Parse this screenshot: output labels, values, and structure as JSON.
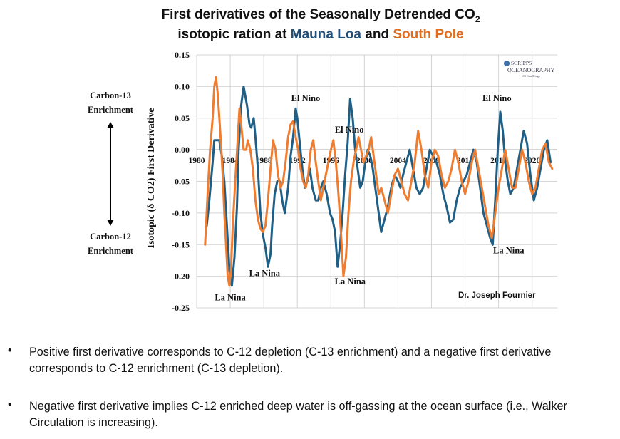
{
  "title_line1": "First derivatives of the Seasonally Detrended CO",
  "title_line1_sub": "2",
  "title_line2_prefix": "isotopic ration at ",
  "title_mlo": "Mauna Loa",
  "title_and": " and ",
  "title_spo": "South Pole",
  "side": {
    "top_label_1": "Carbon-13",
    "top_label_2": "Enrichment",
    "bottom_label_1": "Carbon-12",
    "bottom_label_2": "Enrichment"
  },
  "logo": {
    "line1": "SCRIPPS",
    "line2": "OCEANOGRAPHY",
    "line3": "UC San Diego"
  },
  "credit": "Dr. Joseph Fournier",
  "bullets": [
    "Positive first derivative corresponds to C-12 depletion (C-13 enrichment) and a negative first derivative corresponds to C-12 enrichment (C-13 depletion).",
    "Negative first derivative implies C-12 enriched deep water is off-gassing at the ocean surface (i.e., Walker Circulation is increasing)."
  ],
  "bullet_marker": "•",
  "colors": {
    "mlo": "#1f5f85",
    "spo": "#ee7d31",
    "grid": "#d4d4d4"
  },
  "chart_data": {
    "type": "line",
    "title": "First derivatives of the Seasonally Detrended CO2 isotopic ration at Mauna Loa and South Pole",
    "ylabel": "Isotopic (δ CO2) First Derivative",
    "xlabel": "",
    "xlim": [
      1980,
      2023
    ],
    "ylim": [
      -0.25,
      0.15
    ],
    "xticks": [
      1980,
      1984,
      1988,
      1992,
      1996,
      2000,
      2004,
      2008,
      2012,
      2016,
      2020
    ],
    "yticks": [
      0.15,
      0.1,
      0.05,
      0.0,
      -0.05,
      -0.1,
      -0.15,
      -0.2,
      -0.25
    ],
    "ytick_labels": [
      "0.15",
      "0.10",
      "0.05",
      "0.00",
      "-0.05",
      "-0.10",
      "-0.15",
      "-0.20",
      "-0.25"
    ],
    "grid": true,
    "series": [
      {
        "name": "Mauna Loa",
        "color": "#1f5f85",
        "x": [
          1981.2,
          1981.5,
          1981.9,
          1982.1,
          1982.4,
          1982.7,
          1983.0,
          1983.3,
          1983.6,
          1983.9,
          1984.2,
          1984.5,
          1984.8,
          1985.0,
          1985.3,
          1985.6,
          1986.0,
          1986.3,
          1986.5,
          1986.8,
          1987.0,
          1987.3,
          1987.6,
          1987.9,
          1988.2,
          1988.5,
          1988.8,
          1989.0,
          1989.3,
          1989.6,
          1989.9,
          1990.2,
          1990.5,
          1990.9,
          1991.2,
          1991.5,
          1991.8,
          1992.0,
          1992.3,
          1992.6,
          1992.9,
          1993.2,
          1993.5,
          1993.8,
          1994.2,
          1994.5,
          1994.8,
          1995.1,
          1995.5,
          1995.9,
          1996.2,
          1996.5,
          1996.8,
          1997.1,
          1997.4,
          1997.7,
          1998.0,
          1998.3,
          1998.6,
          1998.9,
          1999.2,
          1999.5,
          1999.8,
          2000.1,
          2000.4,
          2000.7,
          2001.0,
          2001.3,
          2001.6,
          2002.0,
          2002.4,
          2002.8,
          2003.2,
          2003.6,
          2004.0,
          2004.3,
          2004.6,
          2005.0,
          2005.4,
          2005.8,
          2006.2,
          2006.6,
          2007.0,
          2007.4,
          2007.8,
          2008.2,
          2008.6,
          2009.0,
          2009.4,
          2009.8,
          2010.2,
          2010.6,
          2011.0,
          2011.4,
          2011.8,
          2012.2,
          2012.6,
          2013.0,
          2013.4,
          2013.8,
          2014.2,
          2014.6,
          2015.0,
          2015.3,
          2015.6,
          2015.9,
          2016.2,
          2016.5,
          2016.8,
          2017.1,
          2017.4,
          2017.8,
          2018.2,
          2018.6,
          2019.0,
          2019.4,
          2019.8,
          2020.2,
          2020.6,
          2021.0,
          2021.4,
          2021.8,
          2022.2
        ],
        "values": [
          -0.12,
          -0.08,
          -0.02,
          0.015,
          0.015,
          0.015,
          -0.01,
          -0.05,
          -0.12,
          -0.19,
          -0.215,
          -0.17,
          -0.09,
          0.0,
          0.07,
          0.1,
          0.07,
          0.04,
          0.035,
          0.05,
          0.02,
          -0.03,
          -0.1,
          -0.135,
          -0.155,
          -0.185,
          -0.165,
          -0.12,
          -0.07,
          -0.05,
          -0.05,
          -0.08,
          -0.1,
          -0.06,
          -0.01,
          0.02,
          0.065,
          0.05,
          0.01,
          -0.03,
          -0.06,
          -0.05,
          -0.03,
          -0.06,
          -0.08,
          -0.08,
          -0.06,
          -0.05,
          -0.07,
          -0.1,
          -0.11,
          -0.13,
          -0.185,
          -0.15,
          -0.1,
          -0.04,
          0.01,
          0.08,
          0.05,
          0.0,
          -0.03,
          -0.06,
          -0.05,
          -0.02,
          0.0,
          -0.01,
          -0.03,
          -0.06,
          -0.09,
          -0.13,
          -0.11,
          -0.09,
          -0.06,
          -0.04,
          -0.05,
          -0.06,
          -0.04,
          -0.02,
          0.0,
          -0.03,
          -0.06,
          -0.07,
          -0.06,
          -0.03,
          0.0,
          -0.01,
          -0.02,
          -0.04,
          -0.07,
          -0.09,
          -0.115,
          -0.11,
          -0.08,
          -0.06,
          -0.05,
          -0.04,
          -0.02,
          0.0,
          -0.02,
          -0.06,
          -0.1,
          -0.12,
          -0.14,
          -0.15,
          -0.08,
          0.0,
          0.06,
          0.03,
          -0.02,
          -0.05,
          -0.07,
          -0.06,
          -0.03,
          0.0,
          0.03,
          0.01,
          -0.04,
          -0.08,
          -0.06,
          -0.03,
          0.0,
          0.015,
          -0.02
        ]
      },
      {
        "name": "South Pole",
        "color": "#ee7d31",
        "x": [
          1981.0,
          1981.3,
          1981.6,
          1981.9,
          1982.1,
          1982.3,
          1982.5,
          1982.7,
          1982.9,
          1983.1,
          1983.3,
          1983.5,
          1983.7,
          1983.9,
          1984.1,
          1984.3,
          1984.6,
          1984.9,
          1985.1,
          1985.3,
          1985.6,
          1985.9,
          1986.1,
          1986.4,
          1986.7,
          1987.0,
          1987.3,
          1987.6,
          1987.9,
          1988.2,
          1988.5,
          1988.8,
          1989.1,
          1989.4,
          1989.7,
          1990.0,
          1990.3,
          1990.6,
          1990.9,
          1991.2,
          1991.5,
          1991.8,
          1992.1,
          1992.4,
          1992.7,
          1993.0,
          1993.3,
          1993.6,
          1993.9,
          1994.2,
          1994.5,
          1994.8,
          1995.1,
          1995.4,
          1995.7,
          1996.0,
          1996.3,
          1996.6,
          1996.9,
          1997.2,
          1997.5,
          1997.8,
          1998.1,
          1998.4,
          1998.7,
          1999.0,
          1999.3,
          1999.6,
          1999.9,
          2000.2,
          2000.5,
          2000.8,
          2001.1,
          2001.4,
          2001.7,
          2002.0,
          2002.4,
          2002.8,
          2003.2,
          2003.6,
          2004.0,
          2004.4,
          2004.8,
          2005.2,
          2005.6,
          2006.0,
          2006.4,
          2006.8,
          2007.2,
          2007.6,
          2008.0,
          2008.4,
          2008.8,
          2009.2,
          2009.6,
          2010.0,
          2010.4,
          2010.8,
          2011.2,
          2011.6,
          2012.0,
          2012.4,
          2012.8,
          2013.2,
          2013.6,
          2014.0,
          2014.4,
          2014.8,
          2015.2,
          2015.6,
          2016.0,
          2016.4,
          2016.8,
          2017.2,
          2017.6,
          2018.0,
          2018.4,
          2018.8,
          2019.2,
          2019.6,
          2020.0,
          2020.4,
          2020.8,
          2021.2,
          2021.6,
          2022.0,
          2022.4
        ],
        "values": [
          -0.15,
          -0.07,
          0.0,
          0.05,
          0.1,
          0.115,
          0.09,
          0.05,
          0.01,
          -0.04,
          -0.1,
          -0.15,
          -0.2,
          -0.215,
          -0.19,
          -0.12,
          -0.05,
          0.02,
          0.065,
          0.04,
          0.0,
          0.0,
          0.015,
          0.0,
          -0.03,
          -0.08,
          -0.11,
          -0.125,
          -0.13,
          -0.12,
          -0.08,
          -0.03,
          0.015,
          0.0,
          -0.04,
          -0.06,
          -0.05,
          -0.02,
          0.02,
          0.04,
          0.045,
          0.02,
          0.0,
          -0.03,
          -0.05,
          -0.06,
          -0.04,
          0.0,
          0.015,
          -0.02,
          -0.05,
          -0.08,
          -0.06,
          -0.04,
          -0.02,
          0.0,
          0.015,
          -0.02,
          -0.07,
          -0.13,
          -0.2,
          -0.17,
          -0.1,
          -0.05,
          -0.02,
          0.0,
          0.02,
          0.0,
          -0.02,
          -0.01,
          0.0,
          0.02,
          -0.01,
          -0.04,
          -0.07,
          -0.06,
          -0.08,
          -0.1,
          -0.07,
          -0.04,
          -0.03,
          -0.05,
          -0.07,
          -0.08,
          -0.05,
          -0.02,
          0.03,
          0.0,
          -0.04,
          -0.06,
          -0.02,
          0.0,
          -0.01,
          -0.04,
          -0.06,
          -0.05,
          -0.03,
          0.0,
          -0.02,
          -0.05,
          -0.07,
          -0.05,
          -0.02,
          0.0,
          -0.03,
          -0.06,
          -0.09,
          -0.12,
          -0.14,
          -0.1,
          -0.06,
          -0.03,
          0.0,
          -0.03,
          -0.06,
          -0.06,
          -0.03,
          0.0,
          -0.02,
          -0.05,
          -0.07,
          -0.06,
          -0.03,
          0.0,
          0.01,
          -0.02,
          -0.03
        ]
      }
    ],
    "annotations": [
      {
        "text": "El Nino",
        "x": 1993.0,
        "y": 0.077
      },
      {
        "text": "El Nino",
        "x": 1998.2,
        "y": 0.027
      },
      {
        "text": "El Nino",
        "x": 2015.8,
        "y": 0.077
      },
      {
        "text": "La Nina",
        "x": 1984.0,
        "y": -0.238
      },
      {
        "text": "La Nina",
        "x": 1988.1,
        "y": -0.2
      },
      {
        "text": "La Nina",
        "x": 1998.3,
        "y": -0.213
      },
      {
        "text": "La Nina",
        "x": 2017.2,
        "y": -0.164
      }
    ]
  }
}
